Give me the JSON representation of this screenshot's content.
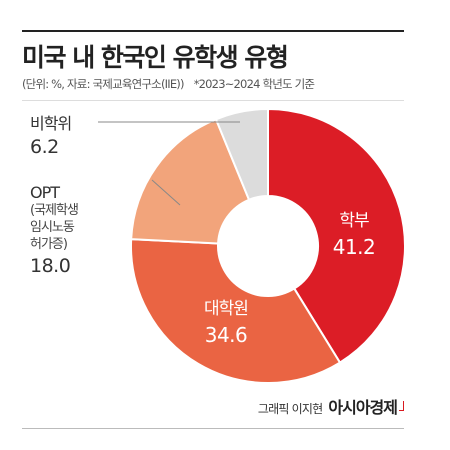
{
  "header": {
    "title": "미국 내 한국인 유학생 유형",
    "unit_source": "(단위: %, 자료: 국제교육연구소(IIE))",
    "period_note": "*2023~2024 학년도 기준"
  },
  "chart_data": {
    "type": "pie",
    "style": "donut",
    "categories": [
      "학부",
      "대학원",
      "OPT",
      "비학위"
    ],
    "values": [
      41.2,
      34.6,
      18.0,
      6.2
    ],
    "value_labels": [
      "41.2",
      "34.6",
      "18.0",
      "6.2"
    ],
    "colors": [
      "#dc1d26",
      "#ea6443",
      "#f2a47b",
      "#dcdcdc"
    ],
    "opt_note_lines": [
      "(국제학생",
      "임시노동",
      "허가증)"
    ],
    "start_angle_deg": 0,
    "direction": "clockwise"
  },
  "footer": {
    "credit": "그래픽 이지현",
    "logo": "아시아경제"
  }
}
